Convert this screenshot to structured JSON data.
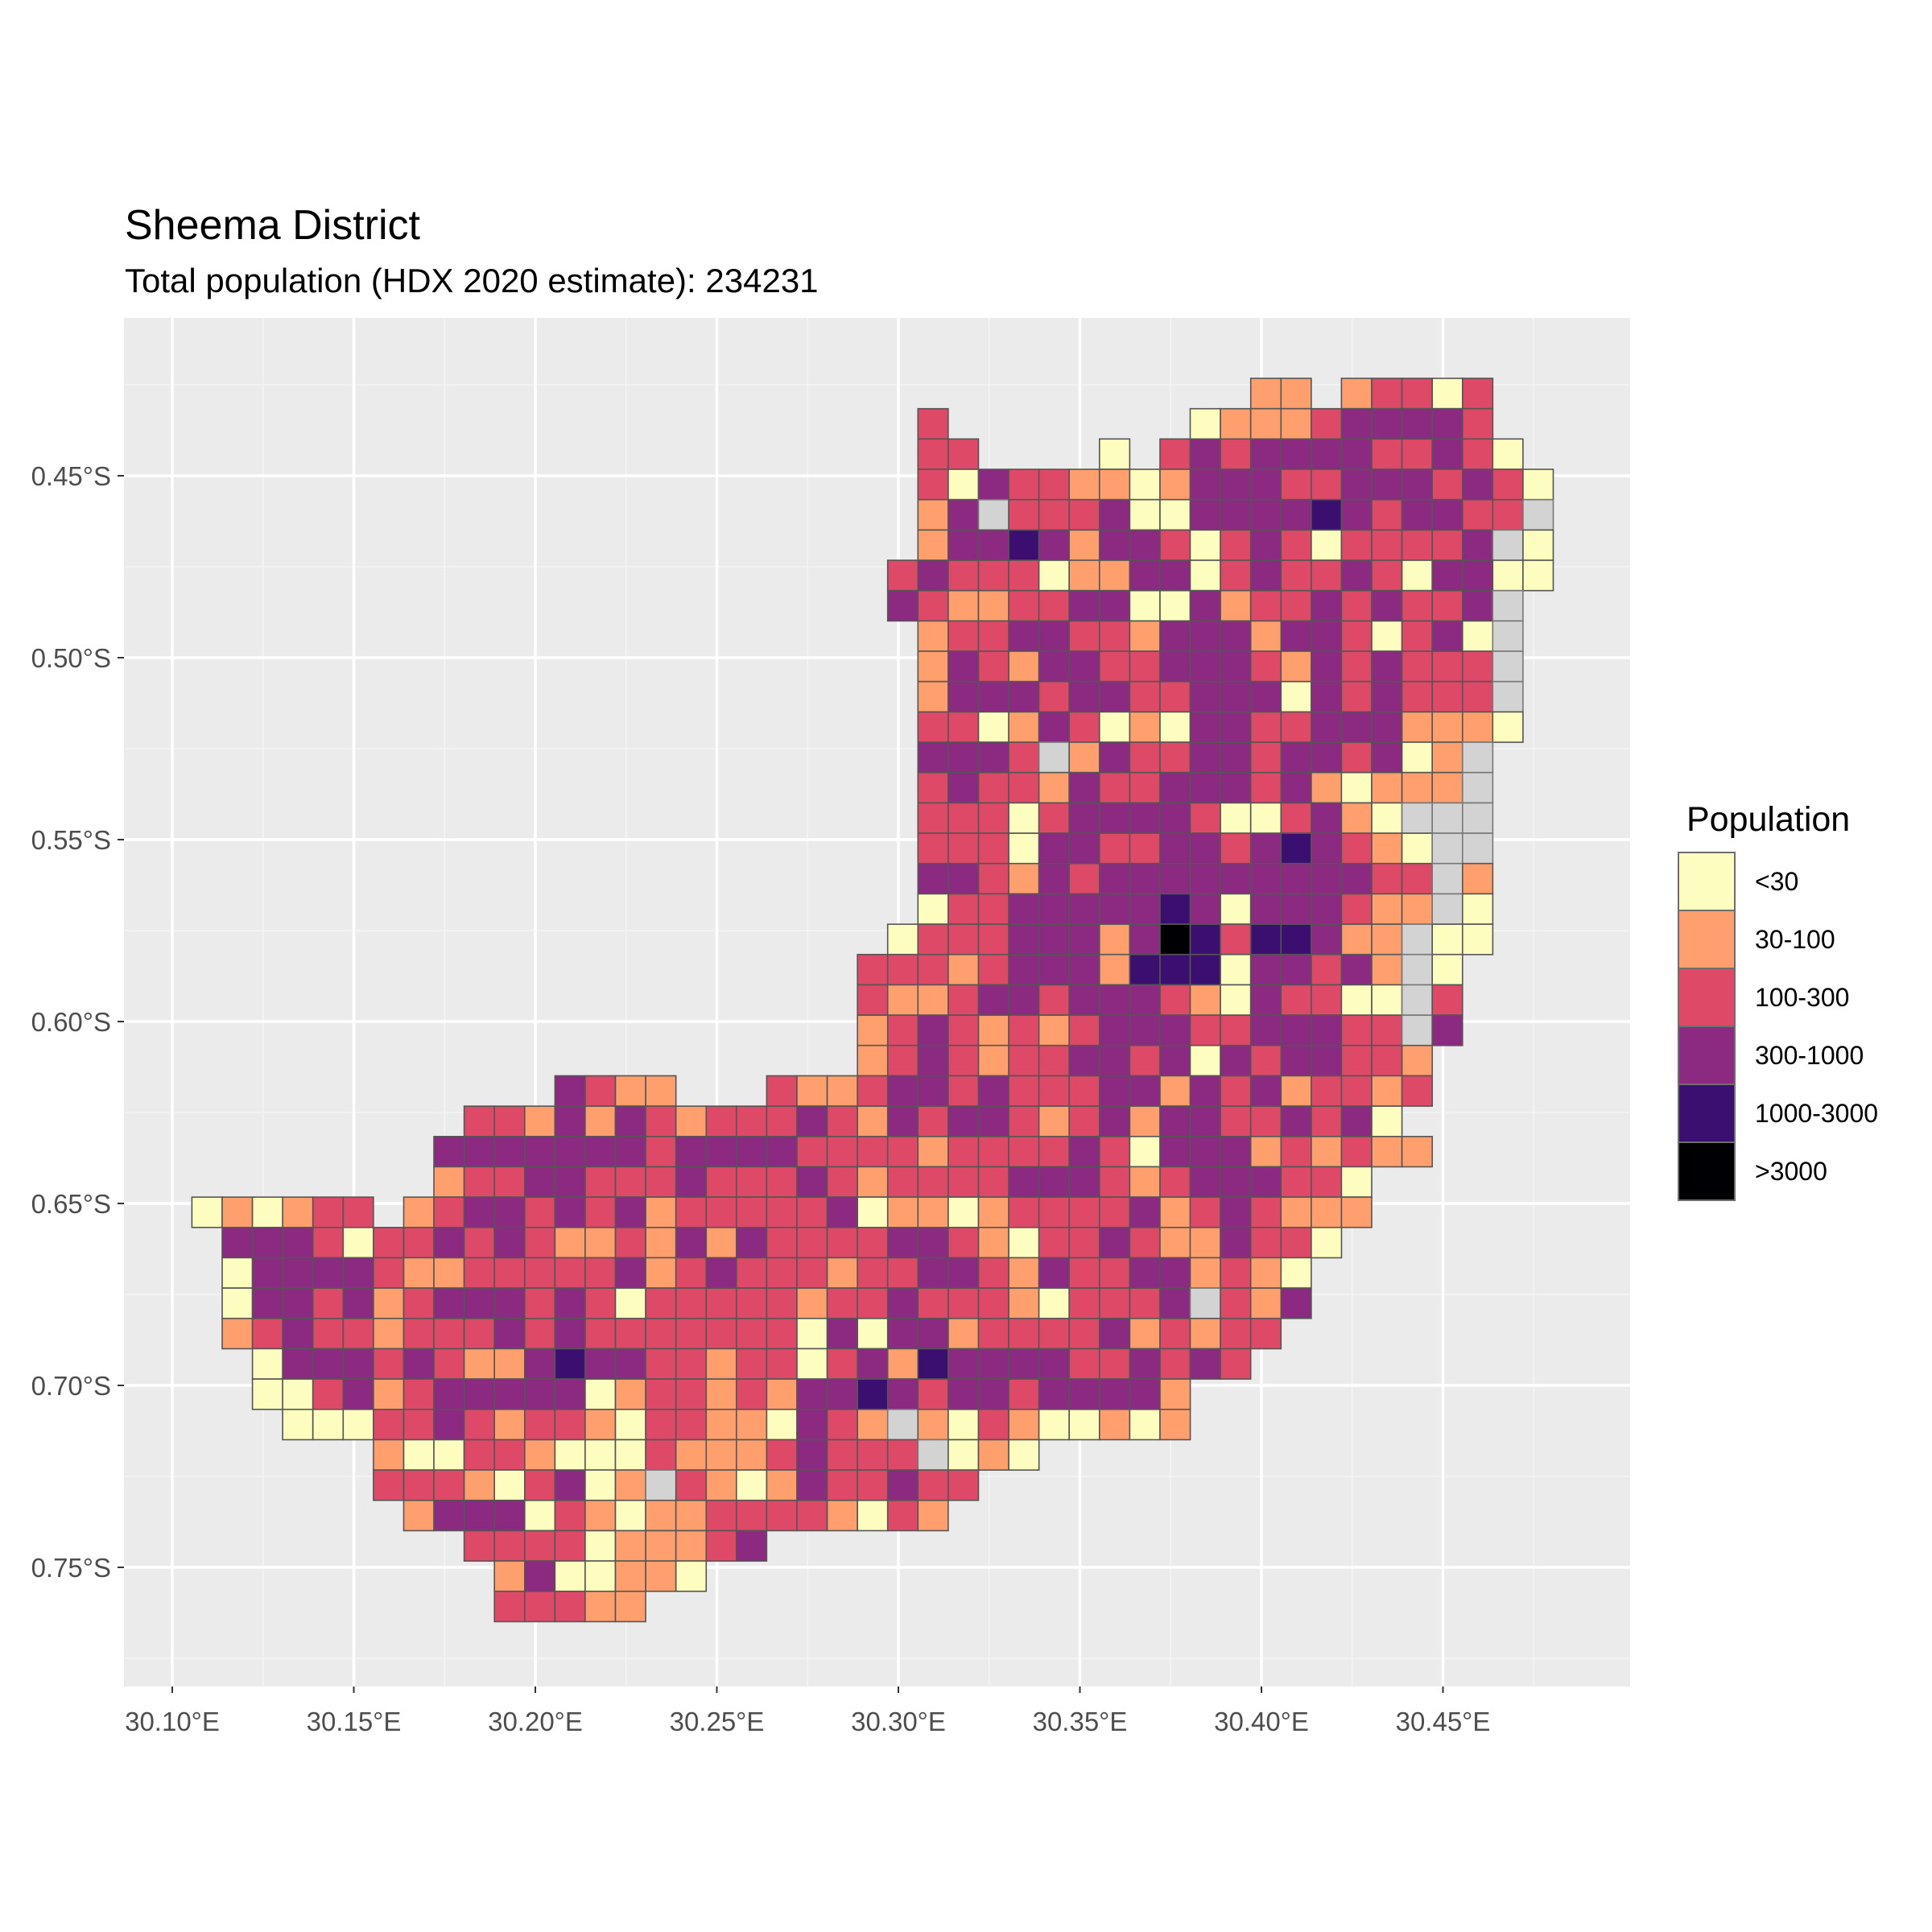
{
  "title": "Sheema District",
  "subtitle": "Total population (HDX 2020 estimate): 234231",
  "chart_data": {
    "type": "heatmap",
    "title": "Sheema District",
    "subtitle": "Total population (HDX 2020 estimate): 234231",
    "xlabel": "",
    "ylabel": "",
    "x_ticks": [
      "30.10°E",
      "30.15°E",
      "30.20°E",
      "30.25°E",
      "30.30°E",
      "30.35°E",
      "30.40°E",
      "30.45°E"
    ],
    "x_tick_values": [
      30.1,
      30.15,
      30.2,
      30.25,
      30.3,
      30.35,
      30.4,
      30.45
    ],
    "y_ticks": [
      "0.45°S",
      "0.50°S",
      "0.55°S",
      "0.60°S",
      "0.65°S",
      "0.70°S",
      "0.75°S"
    ],
    "y_tick_values": [
      0.45,
      0.5,
      0.55,
      0.6,
      0.65,
      0.7,
      0.75
    ],
    "grid": true,
    "cell_size_deg": 0.008333,
    "first_cell_center": {
      "lon": 30.1096,
      "lat_south": 0.4274
    },
    "legend": {
      "title": "Population",
      "position": "right",
      "classes": [
        {
          "code": "0",
          "label": "<30",
          "color": "#fcfdbf"
        },
        {
          "code": "1",
          "label": "30-100",
          "color": "#fe9f6d"
        },
        {
          "code": "2",
          "label": "100-300",
          "color": "#de4968"
        },
        {
          "code": "3",
          "label": "300-1000",
          "color": "#8c2981"
        },
        {
          "code": "4",
          "label": "1000-3000",
          "color": "#3b0f70"
        },
        {
          "code": "5",
          "label": ">3000",
          "color": "#000004"
        }
      ],
      "na_color": "#d3d3d3"
    },
    "rows": [
      [
        35,
        "11.12202"
      ],
      [
        24,
        "2........0111233332"
      ],
      [
        24,
        "22....0.232333322320"
      ],
      [
        24,
        "203221101333223332320"
      ],
      [
        24,
        "13g22230033334323322g"
      ],
      [
        24,
        "1334313320232022223g0"
      ],
      [
        23,
        "2322201133023223203300"
      ],
      [
        23,
        "32112233003122323223g"
      ],
      [
        24,
        "1223322133313320230g"
      ],
      [
        24,
        "1321332233321323222g"
      ],
      [
        24,
        "1333233223330323222g"
      ],
      [
        24,
        "22013201033223331110"
      ],
      [
        24,
        "3332g1322332332301g"
      ],
      [
        24,
        "232213223332310111g"
      ],
      [
        24,
        "2220233332002310ggg"
      ],
      [
        24,
        "22203322332343210gg"
      ],
      [
        24,
        "33213233333333322g1"
      ],
      [
        24,
        "02233333430333211g0"
      ],
      [
        23,
        "02223331354244311g00"
      ],
      [
        22,
        "222123331444033231g0"
      ],
      [
        22,
        "211233233321032200g2"
      ],
      [
        22,
        "123212123332233322g3"
      ],
      [
        22,
        "1232122332303233221"
      ],
      [
        12,
        "3211...2112332322233132312212"
      ],
      [
        9,
        "22131321222321323321231332 23230"
      ],
      [
        8,
        "333333323333222212222320333121211"
      ],
      [
        8,
        "1223322232223212222333212333220"
      ],
      [
        0,
        "010122.1233232312222230110122223 1232111"
      ],
      [
        1,
        "3332022323211213132222332102232113220"
      ],
      [
        1,
        "033332112222231232221223321322331210"
      ],
      [
        1,
        "033231233323202222212232221022 23g213"
      ],
      [
        1,
        "12322122232322222220303312222312122"
      ],
      [
        2,
        "033323211343322122023143333223232"
      ],
      [
        2,
        "0023123333301221213343233233331"
      ],
      [
        3,
        "00022321221022110321g102100101"
      ],
      [
        6,
        "100221000211123222g010"
      ],
      [
        6,
        "222102301g2101322322"
      ],
      [
        7,
        "133302101122221021"
      ],
      [
        9,
        "2222011123"
      ],
      [
        10,
        "1300110"
      ],
      [
        10,
        "22211"
      ]
    ]
  }
}
